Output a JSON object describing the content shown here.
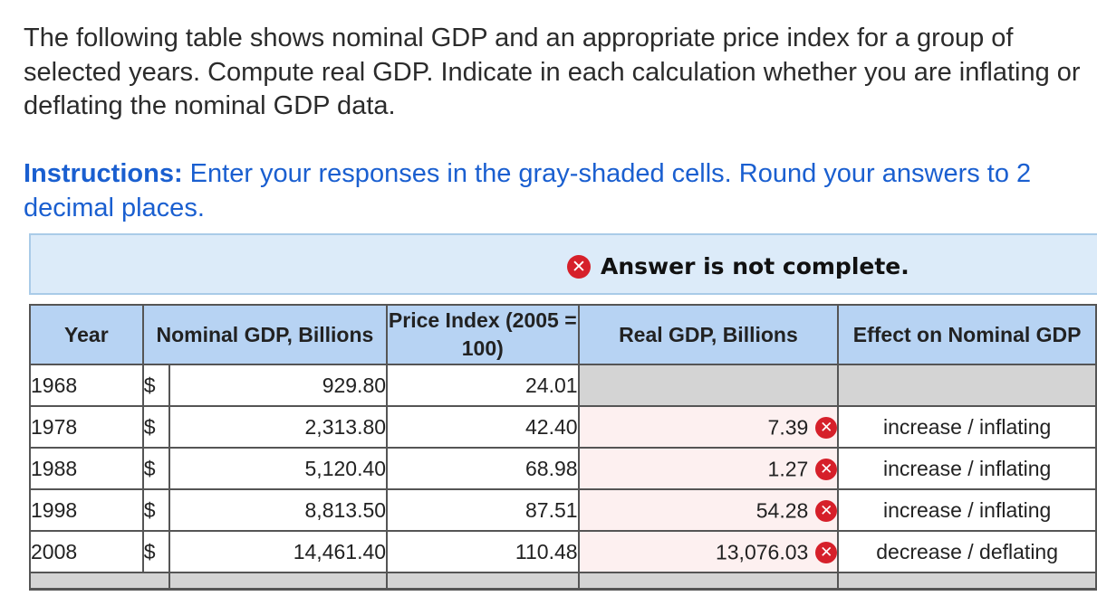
{
  "question": {
    "text": "The following table shows nominal GDP and an appropriate price index for a group of selected years. Compute real GDP. Indicate in each calculation whether you are inflating or deflating the nominal GDP data."
  },
  "instructions": {
    "label": "Instructions:",
    "text": " Enter your responses in the gray-shaded cells. Round your answers to 2 decimal places."
  },
  "status": {
    "icon": "x-circle-icon",
    "icon_glyph": "✕",
    "text": "Answer is not complete.",
    "color": "#d6202a"
  },
  "table": {
    "headers": {
      "year": "Year",
      "nominal": "Nominal GDP, Billions",
      "index": "Price Index (2005 = 100)",
      "real": "Real GDP, Billions",
      "effect": "Effect on Nominal GDP"
    },
    "currency": "$",
    "rows": [
      {
        "year": "1968",
        "nominal": "929.80",
        "index": "24.01",
        "real": "",
        "effect": "",
        "wrong": false
      },
      {
        "year": "1978",
        "nominal": "2,313.80",
        "index": "42.40",
        "real": "7.39",
        "effect": "increase / inflating",
        "wrong": true
      },
      {
        "year": "1988",
        "nominal": "5,120.40",
        "index": "68.98",
        "real": "1.27",
        "effect": "increase / inflating",
        "wrong": true
      },
      {
        "year": "1998",
        "nominal": "8,813.50",
        "index": "87.51",
        "real": "54.28",
        "effect": "increase / inflating",
        "wrong": true
      },
      {
        "year": "2008",
        "nominal": "14,461.40",
        "index": "110.48",
        "real": "13,076.03",
        "effect": "decrease / deflating",
        "wrong": true
      }
    ]
  }
}
